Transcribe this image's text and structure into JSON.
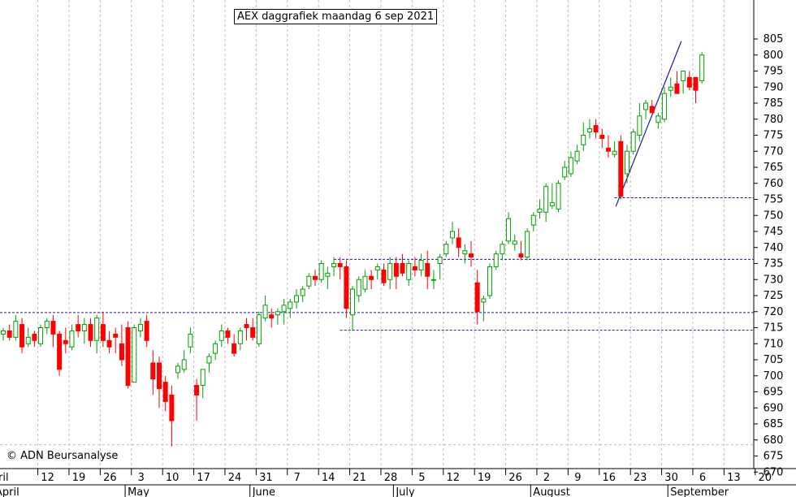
{
  "chart_data": {
    "type": "candlestick",
    "title": "AEX daggrafiek maandag 6 sep 2021",
    "copyright": "© ADN Beursanalyse",
    "y_axis": {
      "side": "right",
      "min": 665,
      "max": 810,
      "ticks": [
        670,
        675,
        680,
        685,
        690,
        695,
        700,
        705,
        710,
        715,
        720,
        725,
        730,
        735,
        740,
        745,
        750,
        755,
        760,
        765,
        770,
        775,
        780,
        785,
        790,
        795,
        800,
        805
      ],
      "grid": "dashed-vertical"
    },
    "x_axis": {
      "day_ticks": [
        {
          "label": "12",
          "idx": 6
        },
        {
          "label": "19",
          "idx": 11
        },
        {
          "label": "26",
          "idx": 16
        },
        {
          "label": "3",
          "idx": 21
        },
        {
          "label": "10",
          "idx": 26
        },
        {
          "label": "17",
          "idx": 31
        },
        {
          "label": "24",
          "idx": 36
        },
        {
          "label": "31",
          "idx": 41
        },
        {
          "label": "7",
          "idx": 46
        },
        {
          "label": "14",
          "idx": 51
        },
        {
          "label": "21",
          "idx": 56
        },
        {
          "label": "28",
          "idx": 61
        },
        {
          "label": "5",
          "idx": 66
        },
        {
          "label": "12",
          "idx": 71
        },
        {
          "label": "19",
          "idx": 76
        },
        {
          "label": "26",
          "idx": 81
        },
        {
          "label": "2",
          "idx": 86
        },
        {
          "label": "9",
          "idx": 91
        },
        {
          "label": "16",
          "idx": 96
        },
        {
          "label": "23",
          "idx": 101
        },
        {
          "label": "30",
          "idx": 106
        },
        {
          "label": "6",
          "idx": 111
        },
        {
          "label": "13",
          "idx": 116
        },
        {
          "label": "20",
          "idx": 121
        }
      ],
      "month_ticks": [
        {
          "label": "April",
          "idx": 0
        },
        {
          "label": "May",
          "idx": 20
        },
        {
          "label": "June",
          "idx": 40
        },
        {
          "label": "July",
          "idx": 63
        },
        {
          "label": "August",
          "idx": 85
        },
        {
          "label": "September",
          "idx": 107
        }
      ],
      "first_day_label": "ril"
    },
    "candles": [
      [
        713,
        715,
        711,
        714
      ],
      [
        714,
        716,
        711,
        712
      ],
      [
        712,
        719,
        711,
        717
      ],
      [
        716,
        718,
        707,
        709
      ],
      [
        710,
        715,
        709,
        712
      ],
      [
        713,
        714,
        709,
        711
      ],
      [
        710,
        716,
        709,
        715
      ],
      [
        715,
        718,
        713,
        717
      ],
      [
        717,
        719,
        709,
        713
      ],
      [
        713,
        714,
        700,
        702
      ],
      [
        711,
        715,
        707,
        710
      ],
      [
        709,
        716,
        708,
        714
      ],
      [
        716,
        719,
        712,
        714
      ],
      [
        714,
        718,
        710,
        716
      ],
      [
        716,
        718,
        709,
        711
      ],
      [
        711,
        719,
        707,
        718
      ],
      [
        716,
        720,
        709,
        711
      ],
      [
        711,
        714,
        707,
        709
      ],
      [
        713,
        715,
        707,
        712
      ],
      [
        710,
        716,
        703,
        705
      ],
      [
        715,
        717,
        696,
        697
      ],
      [
        698,
        716,
        698,
        715
      ],
      [
        714,
        718,
        712,
        716
      ],
      [
        717,
        719,
        709,
        711
      ],
      [
        704,
        708,
        694,
        699
      ],
      [
        704,
        706,
        690,
        696
      ],
      [
        698,
        700,
        689,
        692
      ],
      [
        694,
        697,
        678,
        686
      ],
      [
        701,
        704,
        699,
        703
      ],
      [
        702,
        708,
        701,
        705
      ],
      [
        709,
        715,
        707,
        713
      ],
      [
        697,
        699,
        686,
        694
      ],
      [
        697,
        702,
        693,
        702
      ],
      [
        704,
        707,
        701,
        706
      ],
      [
        707,
        711,
        705,
        710
      ],
      [
        711,
        716,
        709,
        714
      ],
      [
        714,
        715,
        710,
        712
      ],
      [
        710,
        713,
        706,
        707
      ],
      [
        710,
        715,
        708,
        714
      ],
      [
        716,
        718,
        711,
        715
      ],
      [
        715,
        718,
        711,
        712
      ],
      [
        710,
        720,
        709,
        719
      ],
      [
        718,
        725,
        717,
        722
      ],
      [
        719,
        721,
        715,
        718
      ],
      [
        719,
        721,
        716,
        720
      ],
      [
        720,
        724,
        716,
        722
      ],
      [
        721,
        724,
        718,
        723
      ],
      [
        723,
        727,
        721,
        725
      ],
      [
        725,
        728,
        723,
        727
      ],
      [
        728,
        732,
        727,
        731
      ],
      [
        731,
        733,
        728,
        730
      ],
      [
        730,
        736,
        729,
        735
      ],
      [
        731,
        734,
        727,
        732
      ],
      [
        734,
        737,
        731,
        735
      ],
      [
        735,
        737,
        730,
        734
      ],
      [
        734,
        736,
        718,
        721
      ],
      [
        719,
        728,
        714,
        727
      ],
      [
        725,
        731,
        723,
        730
      ],
      [
        727,
        733,
        726,
        731
      ],
      [
        731,
        733,
        727,
        730
      ],
      [
        733,
        735,
        730,
        734
      ],
      [
        733,
        735,
        728,
        729
      ],
      [
        730,
        737,
        727,
        735
      ],
      [
        735,
        737,
        727,
        731
      ],
      [
        735,
        738,
        731,
        732
      ],
      [
        730,
        736,
        728,
        735
      ],
      [
        734,
        737,
        731,
        733
      ],
      [
        733,
        738,
        731,
        736
      ],
      [
        735,
        739,
        727,
        731
      ],
      [
        730,
        733,
        727,
        730
      ],
      [
        735,
        738,
        730,
        737
      ],
      [
        738,
        742,
        737,
        741
      ],
      [
        743,
        748,
        741,
        745
      ],
      [
        743,
        746,
        737,
        740
      ],
      [
        738,
        741,
        735,
        739
      ],
      [
        738,
        742,
        734,
        737
      ],
      [
        729,
        733,
        716,
        720
      ],
      [
        723,
        725,
        717,
        724
      ],
      [
        725,
        735,
        724,
        734
      ],
      [
        734,
        739,
        733,
        738
      ],
      [
        738,
        742,
        736,
        741
      ],
      [
        742,
        751,
        741,
        749
      ],
      [
        741,
        744,
        739,
        742
      ],
      [
        738,
        742,
        736,
        737
      ],
      [
        737,
        746,
        736,
        745
      ],
      [
        747,
        751,
        745,
        750
      ],
      [
        751,
        755,
        749,
        752
      ],
      [
        751,
        760,
        748,
        759
      ],
      [
        753,
        760,
        752,
        754
      ],
      [
        752,
        761,
        751,
        760
      ],
      [
        762,
        767,
        761,
        765
      ],
      [
        763,
        770,
        762,
        768
      ],
      [
        767,
        772,
        766,
        770
      ],
      [
        772,
        779,
        770,
        775
      ],
      [
        776,
        780,
        774,
        777
      ],
      [
        778,
        780,
        774,
        776
      ],
      [
        775,
        777,
        771,
        774
      ],
      [
        771,
        775,
        768,
        770
      ],
      [
        769,
        773,
        768,
        770
      ],
      [
        773,
        775,
        755,
        756
      ],
      [
        763,
        772,
        760,
        770
      ],
      [
        770,
        777,
        769,
        776
      ],
      [
        775,
        785,
        773,
        781
      ],
      [
        783,
        786,
        780,
        785
      ],
      [
        784,
        786,
        782,
        782
      ],
      [
        779,
        782,
        777,
        781
      ],
      [
        780,
        790,
        779,
        788
      ],
      [
        789,
        793,
        787,
        790
      ],
      [
        791,
        795,
        788,
        788
      ],
      [
        792,
        794,
        788,
        795
      ],
      [
        793,
        795,
        789,
        790
      ],
      [
        793,
        793,
        785,
        789
      ],
      [
        792,
        801,
        791,
        800
      ]
    ],
    "horizontal_levels": [
      {
        "value": 719.7,
        "from_idx": -1,
        "to_idx": 121
      },
      {
        "value": 714.2,
        "from_idx": 54,
        "to_idx": 121
      },
      {
        "value": 736.3,
        "from_idx": 53,
        "to_idx": 121
      },
      {
        "value": 755.5,
        "from_idx": 98,
        "to_idx": 121
      }
    ],
    "trendline": {
      "from": {
        "idx": 98.2,
        "value": 752.8
      },
      "to": {
        "idx": 108.7,
        "value": 804.3
      }
    },
    "colors": {
      "up": "#00a000",
      "down": "#ff0000",
      "grid": "#bfbfbf",
      "level": "#1b1b8f",
      "trend": "#1c1ca0"
    }
  }
}
